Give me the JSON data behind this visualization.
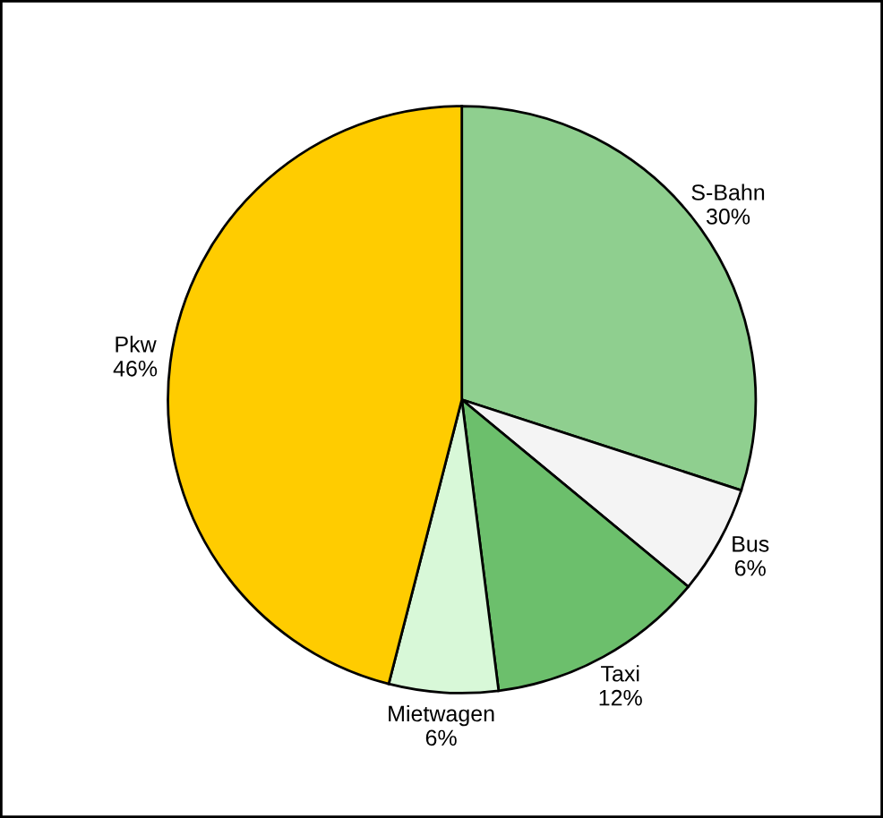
{
  "chart_data": {
    "type": "pie",
    "categories": [
      "S-Bahn",
      "Bus",
      "Taxi",
      "Mietwagen",
      "Pkw"
    ],
    "values": [
      30,
      6,
      12,
      6,
      46
    ],
    "value_labels": [
      "30%",
      "6%",
      "12%",
      "6%",
      "46%"
    ],
    "colors": [
      "#8fcf8f",
      "#f4f4f4",
      "#6cbf6c",
      "#d8f8d8",
      "#ffcc00"
    ]
  }
}
